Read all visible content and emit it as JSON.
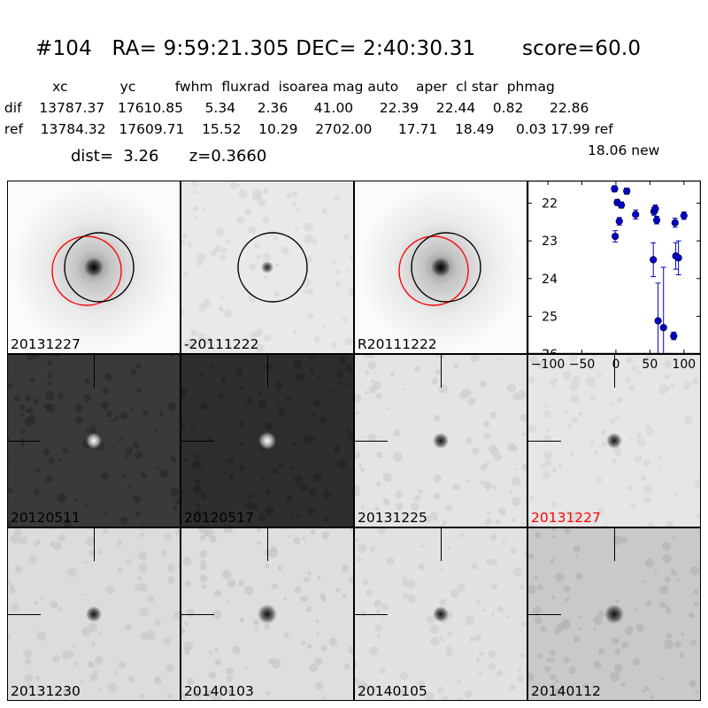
{
  "header": {
    "title": "#104   RA= 9:59:21.305 DEC= 2:40:30.31       score=60.0",
    "columns_line": "            xc            yc         fwhm  fluxrad  isoarea mag auto    aper  cl star  phmag",
    "dif_line": " dif    13787.37   17610.85     5.34     2.36      41.00      22.39    22.44    0.82      22.86",
    "ref_line": " ref    13784.32   17609.71    15.52    10.29    2702.00      17.71    18.49     0.03 17.99 ref",
    "dist_line": "dist=  3.26      z=0.3660",
    "new_line": "18.06 new"
  },
  "panels": [
    {
      "label": "20131227",
      "label_color": "#000000"
    },
    {
      "label": "-20111222",
      "label_color": "#000000"
    },
    {
      "label": "R20111222",
      "label_color": "#000000"
    },
    {
      "label": "20120511",
      "label_color": "#000000"
    },
    {
      "label": "20120517",
      "label_color": "#000000"
    },
    {
      "label": "20131225",
      "label_color": "#000000"
    },
    {
      "label": "20131227",
      "label_color": "#ff0000"
    },
    {
      "label": "20131230",
      "label_color": "#000000"
    },
    {
      "label": "20140103",
      "label_color": "#000000"
    },
    {
      "label": "20140105",
      "label_color": "#000000"
    },
    {
      "label": "20140112",
      "label_color": "#000000"
    }
  ],
  "chart_data": {
    "type": "scatter",
    "title": "",
    "xlabel": "",
    "ylabel": "",
    "xlim": [
      -130,
      125
    ],
    "ylim": [
      26,
      21.4
    ],
    "xticks": [
      -100,
      -50,
      0,
      50,
      100
    ],
    "xtick_labels": [
      "−100",
      "−50",
      "0",
      "50",
      "100"
    ],
    "yticks": [
      22,
      23,
      24,
      25,
      26
    ],
    "ytick_labels": [
      "22",
      "23",
      "24",
      "25",
      "26"
    ],
    "y_inverted": true,
    "grid": false,
    "color": "#0000cc",
    "points": [
      {
        "x": -2,
        "y": 21.62,
        "err": 0.08
      },
      {
        "x": -1,
        "y": 22.88,
        "err": 0.15
      },
      {
        "x": 2,
        "y": 21.98,
        "err": 0.08
      },
      {
        "x": 5,
        "y": 22.48,
        "err": 0.1
      },
      {
        "x": 8,
        "y": 22.05,
        "err": 0.08
      },
      {
        "x": 16,
        "y": 21.68,
        "err": 0.08
      },
      {
        "x": 29,
        "y": 22.3,
        "err": 0.12
      },
      {
        "x": 55,
        "y": 23.5,
        "err": 0.45
      },
      {
        "x": 56,
        "y": 22.22,
        "err": 0.1
      },
      {
        "x": 58,
        "y": 22.15,
        "err": 0.1
      },
      {
        "x": 60,
        "y": 22.45,
        "err": 0.1
      },
      {
        "x": 62,
        "y": 25.12,
        "err": 1.0
      },
      {
        "x": 70,
        "y": 25.3,
        "err": 1.6
      },
      {
        "x": 85,
        "y": 25.52,
        "err": 0.1
      },
      {
        "x": 87,
        "y": 22.52,
        "err": 0.12
      },
      {
        "x": 88,
        "y": 23.4,
        "err": 0.35
      },
      {
        "x": 92,
        "y": 23.45,
        "err": 0.45
      },
      {
        "x": 100,
        "y": 22.33,
        "err": 0.1
      }
    ]
  }
}
